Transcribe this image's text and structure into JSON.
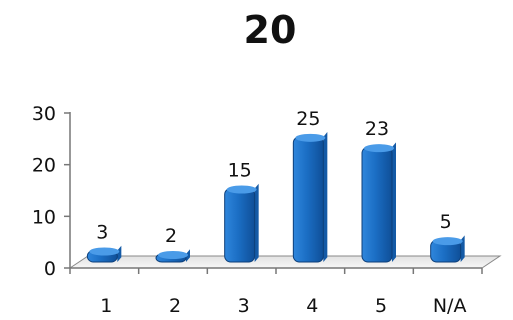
{
  "chart_data": {
    "type": "bar",
    "title": "20",
    "categories": [
      "1",
      "2",
      "3",
      "4",
      "5",
      "N/A"
    ],
    "values": [
      3,
      2,
      15,
      25,
      23,
      5
    ],
    "data_labels": [
      "3",
      "2",
      "15",
      "25",
      "23",
      "5"
    ],
    "ylim": [
      0,
      30
    ],
    "yticks": [
      "0",
      "10",
      "20",
      "30"
    ],
    "xlabel": "",
    "ylabel": "",
    "grid": false,
    "legend": "none",
    "bar_color": "#1f6fc8",
    "bar_top_color": "#4a9be8",
    "bar_side_color": "#145aa6",
    "floor_color": "#f0f0f0"
  }
}
